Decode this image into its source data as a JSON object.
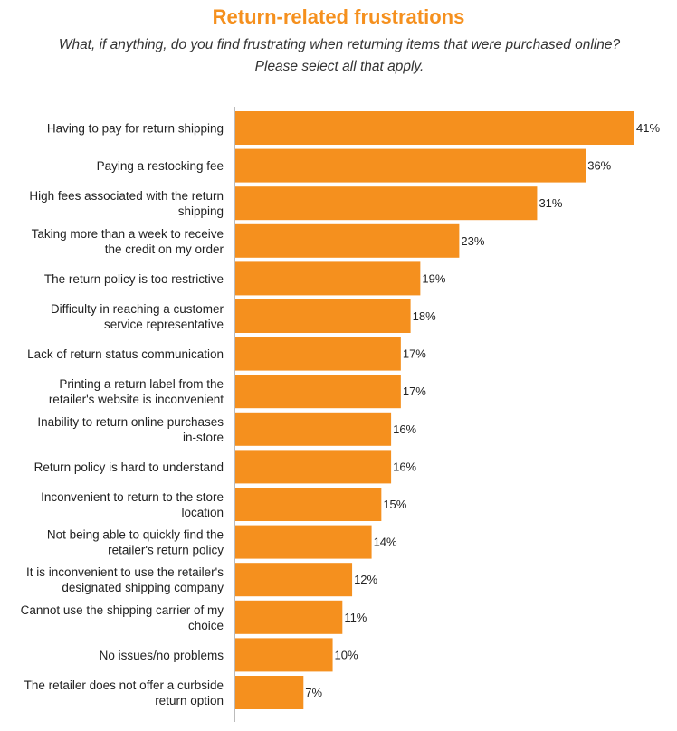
{
  "chart_data": {
    "type": "bar",
    "orientation": "horizontal",
    "title": "Return-related frustrations",
    "subtitle": "What, if anything, do you find frustrating when returning items that were purchased online? Please select all that apply.",
    "categories": [
      "Having to pay for return shipping",
      "Paying a restocking fee",
      "High fees associated with the return shipping",
      "Taking more than a week to receive the credit on my order",
      "The return policy is too restrictive",
      "Difficulty in reaching a customer service representative",
      "Lack of return status communication",
      "Printing a return label from the retailer's website is inconvenient",
      "Inability to return online purchases in-store",
      "Return policy is hard to understand",
      "Inconvenient to return to the store location",
      "Not being able to quickly find the retailer's return policy",
      "It is inconvenient to use the retailer's designated shipping company",
      "Cannot use the shipping carrier of my choice",
      "No issues/no problems",
      "The retailer does not offer a curbside return option"
    ],
    "category_lines": [
      [
        "Having to pay for return shipping"
      ],
      [
        "Paying a restocking fee"
      ],
      [
        "High fees associated with the return",
        "shipping"
      ],
      [
        "Taking more than a week to receive",
        "the credit on my order"
      ],
      [
        "The return policy is too restrictive"
      ],
      [
        "Difficulty in reaching a customer",
        "service representative"
      ],
      [
        "Lack of return status communication"
      ],
      [
        "Printing a return label from the",
        "retailer's website is inconvenient"
      ],
      [
        "Inability to return online purchases",
        "in-store"
      ],
      [
        "Return policy is hard to understand"
      ],
      [
        "Inconvenient to return to the store",
        "location"
      ],
      [
        "Not being able to quickly find the",
        "retailer's return policy"
      ],
      [
        "It is inconvenient to use the retailer's",
        "designated shipping company"
      ],
      [
        "Cannot use the shipping carrier of my",
        "choice"
      ],
      [
        "No issues/no problems"
      ],
      [
        "The retailer does not offer a curbside",
        "return option"
      ]
    ],
    "values": [
      41,
      36,
      31,
      23,
      19,
      18,
      17,
      17,
      16,
      16,
      15,
      14,
      12,
      11,
      10,
      7
    ],
    "value_labels": [
      "41%",
      "36%",
      "31%",
      "23%",
      "19%",
      "18%",
      "17%",
      "17%",
      "16%",
      "16%",
      "15%",
      "14%",
      "12%",
      "11%",
      "10%",
      "7%"
    ],
    "unit": "%",
    "xlim": [
      0,
      41
    ],
    "grid": false,
    "legend": "none"
  },
  "colors": {
    "bar": "#F5901E",
    "title": "#F5901E",
    "axis": "#BBBBBB",
    "text": "#222222"
  }
}
